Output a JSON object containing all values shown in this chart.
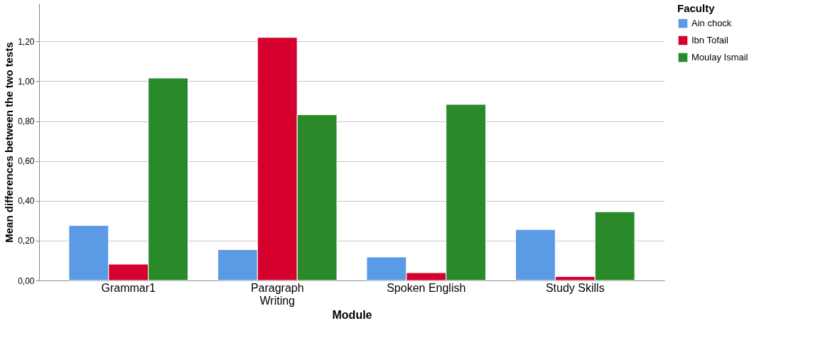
{
  "chart_data": {
    "type": "bar",
    "xlabel": "Module",
    "ylabel": "Mean differences between the two tests",
    "legend_title": "Faculty",
    "categories": [
      "Grammar1",
      "Paragraph Writing",
      "Spoken English",
      "Study Skills"
    ],
    "series": [
      {
        "name": "Ain chock",
        "color": "#5b9be6",
        "values": [
          0.276,
          0.155,
          0.118,
          0.256
        ]
      },
      {
        "name": "Ibn Tofail",
        "color": "#d6002f",
        "values": [
          0.082,
          1.22,
          0.039,
          0.02
        ]
      },
      {
        "name": "Moulay Ismail",
        "color": "#2a8a2a",
        "values": [
          1.016,
          0.832,
          0.884,
          0.345
        ]
      }
    ],
    "ylim": [
      0,
      1.39
    ],
    "yticks": [
      {
        "value": 0,
        "label": "0,00"
      },
      {
        "value": 0.2,
        "label": "0,20"
      },
      {
        "value": 0.4,
        "label": "0,40"
      },
      {
        "value": 0.6,
        "label": "0,60"
      },
      {
        "value": 0.8,
        "label": "0,80"
      },
      {
        "value": 1.0,
        "label": "1,00"
      },
      {
        "value": 1.2,
        "label": "1,20"
      }
    ],
    "grid": "y",
    "legend": "top right"
  }
}
